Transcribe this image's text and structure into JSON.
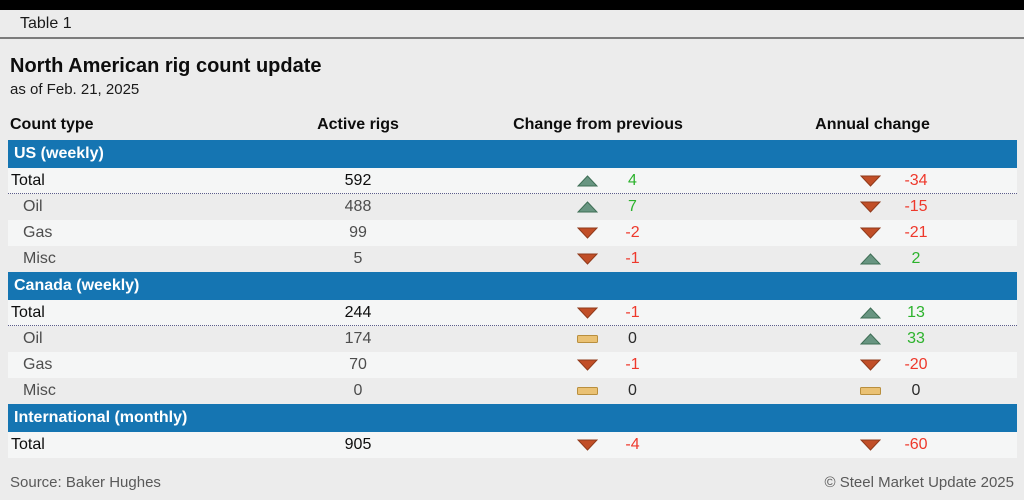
{
  "header": {
    "table_label": "Table 1"
  },
  "columns": {
    "count_type": "Count type",
    "active_rigs": "Active rigs",
    "change_prev": "Change from previous",
    "annual": "Annual change"
  },
  "footer": {
    "source": "Source: Baker Hughes",
    "copyright": "© Steel Market Update 2025"
  },
  "colors": {
    "top_bar": "#000000",
    "page_bg": "#ececec",
    "row_light": "#f5f6f6",
    "row_dark": "#ececec",
    "section_bar": "#1575b2",
    "up_fill": "#689581",
    "up_border": "#3e6e55",
    "down_fill": "#c14e27",
    "down_border": "#8f3a1b",
    "flat_fill": "#eac173",
    "flat_border": "#b98f3e",
    "pos_text": "#2cb22c",
    "neg_text": "#ee382b",
    "zero_text": "#2b2b2b",
    "dotted": "#5c5c8a",
    "footer_text": "#595959"
  },
  "chart_data": {
    "type": "table",
    "title": "North American rig count update",
    "subtitle": "as of Feb. 21, 2025",
    "columns": [
      "Count type",
      "Active rigs",
      "Change from previous",
      "Annual change"
    ],
    "sections": [
      {
        "header": "US (weekly)",
        "rows": [
          {
            "label": "Total",
            "active_rigs": 592,
            "change_from_previous": 4,
            "annual_change": -34,
            "total": true
          },
          {
            "label": "Oil",
            "active_rigs": 488,
            "change_from_previous": 7,
            "annual_change": -15
          },
          {
            "label": "Gas",
            "active_rigs": 99,
            "change_from_previous": -2,
            "annual_change": -21
          },
          {
            "label": "Misc",
            "active_rigs": 5,
            "change_from_previous": -1,
            "annual_change": 2
          }
        ]
      },
      {
        "header": "Canada (weekly)",
        "rows": [
          {
            "label": "Total",
            "active_rigs": 244,
            "change_from_previous": -1,
            "annual_change": 13,
            "total": true
          },
          {
            "label": "Oil",
            "active_rigs": 174,
            "change_from_previous": 0,
            "annual_change": 33
          },
          {
            "label": "Gas",
            "active_rigs": 70,
            "change_from_previous": -1,
            "annual_change": -20
          },
          {
            "label": "Misc",
            "active_rigs": 0,
            "change_from_previous": 0,
            "annual_change": 0
          }
        ]
      },
      {
        "header": "International (monthly)",
        "rows": [
          {
            "label": "Total",
            "active_rigs": 905,
            "change_from_previous": -4,
            "annual_change": -60,
            "total": true
          }
        ]
      }
    ],
    "source": "Baker Hughes"
  }
}
